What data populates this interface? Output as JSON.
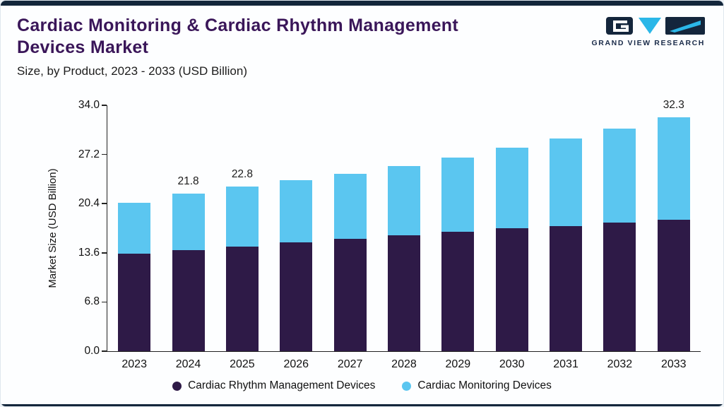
{
  "header": {
    "title_line1": "Cardiac Monitoring & Cardiac Rhythm Management",
    "title_line2": "Devices Market",
    "subtitle": "Size, by Product, 2023 - 2033 (USD Billion)",
    "logo_text": "GRAND VIEW RESEARCH"
  },
  "chart_data": {
    "type": "bar",
    "stacked": true,
    "title": "Cardiac Monitoring & Cardiac Rhythm Management Devices Market",
    "subtitle": "Size, by Product, 2023 - 2033 (USD Billion)",
    "xlabel": "",
    "ylabel": "Market Size (USD Billion)",
    "ylim": [
      0,
      34
    ],
    "yticks": [
      "0.0",
      "6.8",
      "13.6",
      "20.4",
      "27.2",
      "34.0"
    ],
    "grid": false,
    "legend_position": "bottom",
    "categories": [
      "2023",
      "2024",
      "2025",
      "2026",
      "2027",
      "2028",
      "2029",
      "2030",
      "2031",
      "2032",
      "2033"
    ],
    "series": [
      {
        "name": "Cardiac Rhythm Management Devices",
        "color": "#2E1A47",
        "values": [
          13.5,
          14.0,
          14.5,
          15.0,
          15.5,
          16.0,
          16.5,
          17.0,
          17.3,
          17.8,
          18.2
        ]
      },
      {
        "name": "Cardiac Monitoring Devices",
        "color": "#5BC6F0",
        "values": [
          7.0,
          7.8,
          8.3,
          8.6,
          9.0,
          9.6,
          10.3,
          11.1,
          12.1,
          13.0,
          14.1
        ]
      }
    ],
    "totals": [
      20.5,
      21.8,
      22.8,
      23.6,
      24.5,
      25.6,
      26.8,
      28.1,
      29.4,
      30.8,
      32.3
    ],
    "total_labels": {
      "2024": "21.8",
      "2025": "22.8",
      "2033": "32.3"
    },
    "colors": {
      "accent_navy": "#13263B",
      "title_purple": "#3A1659",
      "logo_cyan": "#2BB7E8"
    }
  }
}
